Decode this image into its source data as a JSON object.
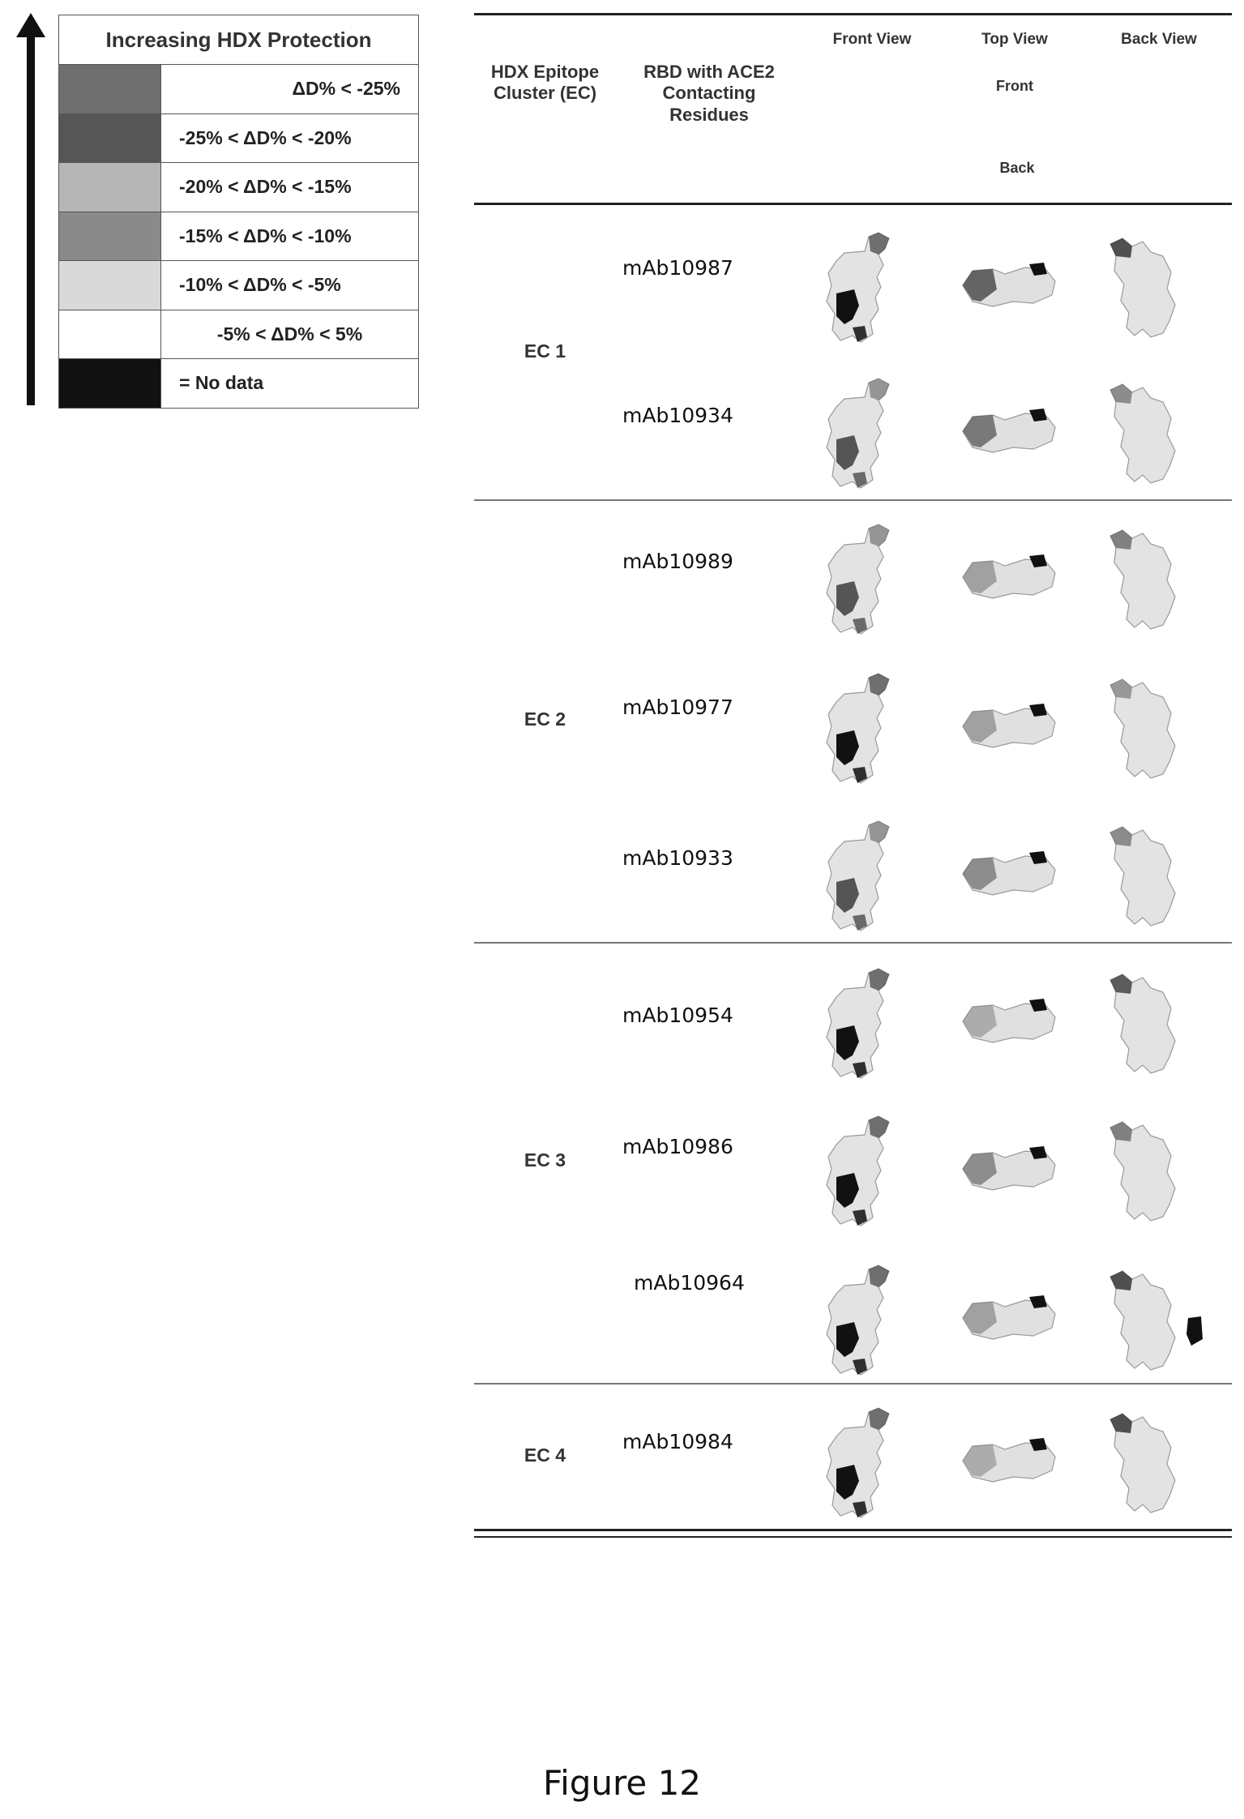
{
  "legend": {
    "title": "Increasing HDX Protection",
    "rows": [
      {
        "label": "ΔD% < -25%",
        "color": "#6f6f6f",
        "align": "right"
      },
      {
        "label": "-25% < ΔD% < -20%",
        "color": "#565656",
        "align": "left"
      },
      {
        "label": "-20% < ΔD% < -15%",
        "color": "#b6b6b6",
        "align": "left"
      },
      {
        "label": "-15% < ΔD% < -10%",
        "color": "#8a8a8a",
        "align": "left"
      },
      {
        "label": "-10% < ΔD% < -5%",
        "color": "#d9d9d9",
        "align": "left"
      },
      {
        "label": "-5% < ΔD% <  5%",
        "color": "#ffffff",
        "align": "center"
      },
      {
        "label": "= No data",
        "color": "#111111",
        "align": "left"
      }
    ]
  },
  "table": {
    "header": {
      "col1": "HDX Epitope Cluster (EC)",
      "col2": "RBD with ACE2 Contacting Residues",
      "front_view": "Front View",
      "top_view": "Top View",
      "back_view": "Back View",
      "top_front": "Front",
      "top_back": "Back"
    },
    "clusters": [
      "EC 1",
      "EC 2",
      "EC 3",
      "EC 4"
    ],
    "antibodies": [
      "mAb10987",
      "mAb10934",
      "mAb10989",
      "mAb10977",
      "mAb10933",
      "mAb10954",
      "mAb10986",
      "mAb10964",
      "mAb10984"
    ]
  },
  "caption": "Figure 12"
}
